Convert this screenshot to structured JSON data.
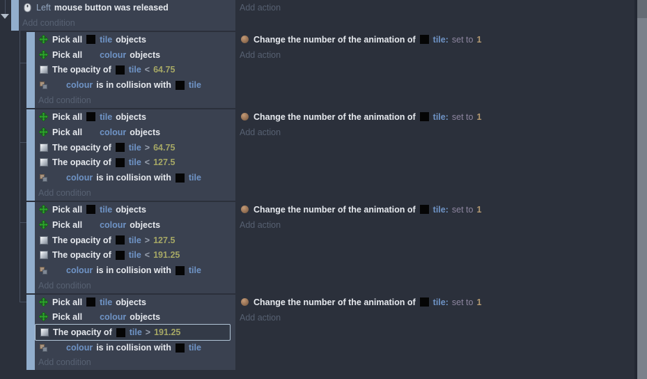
{
  "colors": {
    "page_bg": "#2b303b",
    "block_bg": "#3a4150",
    "margin_bar": "#92aecd",
    "text": "#e6e9ee",
    "object_link": "#6f94c6",
    "parameter": "#94a7c0",
    "number": "#a6a865",
    "value": "#b59a72",
    "operator": "#98a0ae",
    "muted": "#8e86a0",
    "add_label": "#576172",
    "selection_border": "#b3c6d8",
    "tree_line": "#495263",
    "scrollbar_thumb": "#7b818b"
  },
  "icons": {
    "mouse-icon": "white mouse with scroll wheel",
    "pick-all-icon": "green four-way arrow cross",
    "opacity-icon": "white-to-gray gradient square",
    "collision-icon": "two overlapping squares",
    "tile-object-icon": "solid black square",
    "colour-object-icon": "transparent (invisible) square",
    "action-object-icon": "tan circle",
    "collapse-arrow-icon": "down triangle"
  },
  "blocks": [
    {
      "conditions": [
        {
          "icon": "mouse-icon",
          "segments": [
            {
              "type": "param",
              "text": "Left"
            },
            {
              "type": "text",
              "text": "mouse button was released"
            }
          ]
        }
      ],
      "add_condition_label": "Add condition",
      "actions": [],
      "add_action_label": "Add action"
    },
    {
      "conditions": [
        {
          "icon": "pick-all-icon",
          "segments": [
            {
              "type": "text",
              "text": "Pick all"
            },
            {
              "type": "icon",
              "icon": "tile-object-icon"
            },
            {
              "type": "object",
              "text": "tile"
            },
            {
              "type": "text",
              "text": "objects"
            }
          ]
        },
        {
          "icon": "pick-all-icon",
          "segments": [
            {
              "type": "text",
              "text": "Pick all"
            },
            {
              "type": "icon",
              "icon": "colour-object-icon"
            },
            {
              "type": "object",
              "text": "colour"
            },
            {
              "type": "text",
              "text": "objects"
            }
          ]
        },
        {
          "icon": "opacity-icon",
          "segments": [
            {
              "type": "text",
              "text": "The opacity of"
            },
            {
              "type": "icon",
              "icon": "tile-object-icon"
            },
            {
              "type": "object",
              "text": "tile"
            },
            {
              "type": "op",
              "text": "<"
            },
            {
              "type": "number",
              "text": "64.75"
            }
          ]
        },
        {
          "icon": "collision-icon",
          "segments": [
            {
              "type": "icon",
              "icon": "colour-object-icon"
            },
            {
              "type": "object",
              "text": "colour"
            },
            {
              "type": "text",
              "text": "is in collision with"
            },
            {
              "type": "icon",
              "icon": "tile-object-icon"
            },
            {
              "type": "object",
              "text": "tile"
            }
          ]
        }
      ],
      "add_condition_label": "Add condition",
      "actions": [
        {
          "icon": "action-object-icon",
          "segments": [
            {
              "type": "text",
              "text": "Change the number of the animation of"
            },
            {
              "type": "icon",
              "icon": "tile-object-icon"
            },
            {
              "type": "object",
              "text": "tile:"
            },
            {
              "type": "muted",
              "text": "set to"
            },
            {
              "type": "value",
              "text": "1"
            }
          ]
        }
      ],
      "add_action_label": "Add action"
    },
    {
      "conditions": [
        {
          "icon": "pick-all-icon",
          "segments": [
            {
              "type": "text",
              "text": "Pick all"
            },
            {
              "type": "icon",
              "icon": "tile-object-icon"
            },
            {
              "type": "object",
              "text": "tile"
            },
            {
              "type": "text",
              "text": "objects"
            }
          ]
        },
        {
          "icon": "pick-all-icon",
          "segments": [
            {
              "type": "text",
              "text": "Pick all"
            },
            {
              "type": "icon",
              "icon": "colour-object-icon"
            },
            {
              "type": "object",
              "text": "colour"
            },
            {
              "type": "text",
              "text": "objects"
            }
          ]
        },
        {
          "icon": "opacity-icon",
          "segments": [
            {
              "type": "text",
              "text": "The opacity of"
            },
            {
              "type": "icon",
              "icon": "tile-object-icon"
            },
            {
              "type": "object",
              "text": "tile"
            },
            {
              "type": "op",
              "text": ">"
            },
            {
              "type": "number",
              "text": "64.75"
            }
          ]
        },
        {
          "icon": "opacity-icon",
          "segments": [
            {
              "type": "text",
              "text": "The opacity of"
            },
            {
              "type": "icon",
              "icon": "tile-object-icon"
            },
            {
              "type": "object",
              "text": "tile"
            },
            {
              "type": "op",
              "text": "<"
            },
            {
              "type": "number",
              "text": "127.5"
            }
          ]
        },
        {
          "icon": "collision-icon",
          "segments": [
            {
              "type": "icon",
              "icon": "colour-object-icon"
            },
            {
              "type": "object",
              "text": "colour"
            },
            {
              "type": "text",
              "text": "is in collision with"
            },
            {
              "type": "icon",
              "icon": "tile-object-icon"
            },
            {
              "type": "object",
              "text": "tile"
            }
          ]
        }
      ],
      "add_condition_label": "Add condition",
      "actions": [
        {
          "icon": "action-object-icon",
          "segments": [
            {
              "type": "text",
              "text": "Change the number of the animation of"
            },
            {
              "type": "icon",
              "icon": "tile-object-icon"
            },
            {
              "type": "object",
              "text": "tile:"
            },
            {
              "type": "muted",
              "text": "set to"
            },
            {
              "type": "value",
              "text": "1"
            }
          ]
        }
      ],
      "add_action_label": "Add action"
    },
    {
      "conditions": [
        {
          "icon": "pick-all-icon",
          "segments": [
            {
              "type": "text",
              "text": "Pick all"
            },
            {
              "type": "icon",
              "icon": "tile-object-icon"
            },
            {
              "type": "object",
              "text": "tile"
            },
            {
              "type": "text",
              "text": "objects"
            }
          ]
        },
        {
          "icon": "pick-all-icon",
          "segments": [
            {
              "type": "text",
              "text": "Pick all"
            },
            {
              "type": "icon",
              "icon": "colour-object-icon"
            },
            {
              "type": "object",
              "text": "colour"
            },
            {
              "type": "text",
              "text": "objects"
            }
          ]
        },
        {
          "icon": "opacity-icon",
          "segments": [
            {
              "type": "text",
              "text": "The opacity of"
            },
            {
              "type": "icon",
              "icon": "tile-object-icon"
            },
            {
              "type": "object",
              "text": "tile"
            },
            {
              "type": "op",
              "text": ">"
            },
            {
              "type": "number",
              "text": "127.5"
            }
          ]
        },
        {
          "icon": "opacity-icon",
          "segments": [
            {
              "type": "text",
              "text": "The opacity of"
            },
            {
              "type": "icon",
              "icon": "tile-object-icon"
            },
            {
              "type": "object",
              "text": "tile"
            },
            {
              "type": "op",
              "text": "<"
            },
            {
              "type": "number",
              "text": "191.25"
            }
          ]
        },
        {
          "icon": "collision-icon",
          "segments": [
            {
              "type": "icon",
              "icon": "colour-object-icon"
            },
            {
              "type": "object",
              "text": "colour"
            },
            {
              "type": "text",
              "text": "is in collision with"
            },
            {
              "type": "icon",
              "icon": "tile-object-icon"
            },
            {
              "type": "object",
              "text": "tile"
            }
          ]
        }
      ],
      "add_condition_label": "Add condition",
      "actions": [
        {
          "icon": "action-object-icon",
          "segments": [
            {
              "type": "text",
              "text": "Change the number of the animation of"
            },
            {
              "type": "icon",
              "icon": "tile-object-icon"
            },
            {
              "type": "object",
              "text": "tile:"
            },
            {
              "type": "muted",
              "text": "set to"
            },
            {
              "type": "value",
              "text": "1"
            }
          ]
        }
      ],
      "add_action_label": "Add action"
    },
    {
      "conditions": [
        {
          "icon": "pick-all-icon",
          "segments": [
            {
              "type": "text",
              "text": "Pick all"
            },
            {
              "type": "icon",
              "icon": "tile-object-icon"
            },
            {
              "type": "object",
              "text": "tile"
            },
            {
              "type": "text",
              "text": "objects"
            }
          ]
        },
        {
          "icon": "pick-all-icon",
          "segments": [
            {
              "type": "text",
              "text": "Pick all"
            },
            {
              "type": "icon",
              "icon": "colour-object-icon"
            },
            {
              "type": "object",
              "text": "colour"
            },
            {
              "type": "text",
              "text": "objects"
            }
          ]
        },
        {
          "icon": "opacity-icon",
          "selected": true,
          "segments": [
            {
              "type": "text",
              "text": "The opacity of"
            },
            {
              "type": "icon",
              "icon": "tile-object-icon"
            },
            {
              "type": "object",
              "text": "tile"
            },
            {
              "type": "op",
              "text": ">"
            },
            {
              "type": "number",
              "text": "191.25"
            }
          ]
        },
        {
          "icon": "collision-icon",
          "segments": [
            {
              "type": "icon",
              "icon": "colour-object-icon"
            },
            {
              "type": "object",
              "text": "colour"
            },
            {
              "type": "text",
              "text": "is in collision with"
            },
            {
              "type": "icon",
              "icon": "tile-object-icon"
            },
            {
              "type": "object",
              "text": "tile"
            }
          ]
        }
      ],
      "add_condition_label": "Add condition",
      "actions": [
        {
          "icon": "action-object-icon",
          "segments": [
            {
              "type": "text",
              "text": "Change the number of the animation of"
            },
            {
              "type": "icon",
              "icon": "tile-object-icon"
            },
            {
              "type": "object",
              "text": "tile:"
            },
            {
              "type": "muted",
              "text": "set to"
            },
            {
              "type": "value",
              "text": "1"
            }
          ]
        }
      ],
      "add_action_label": "Add action"
    }
  ]
}
